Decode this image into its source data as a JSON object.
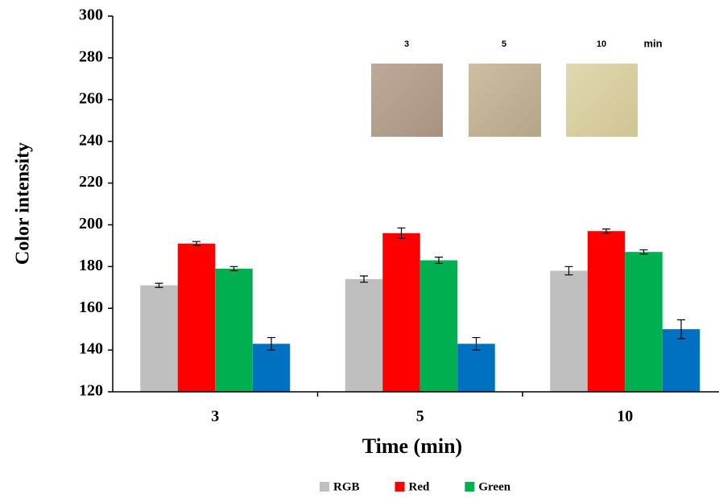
{
  "chart_data": {
    "type": "bar",
    "x_label": "Time (min)",
    "y_label": "Color intensity",
    "categories": [
      "3",
      "5",
      "10"
    ],
    "series": [
      {
        "name": "RGB",
        "color": "#bfbfbf",
        "values": [
          171,
          174,
          178
        ],
        "errors": [
          1,
          1.5,
          2
        ]
      },
      {
        "name": "Red",
        "color": "#ff0000",
        "values": [
          191,
          196,
          197
        ],
        "errors": [
          1,
          2.5,
          1
        ]
      },
      {
        "name": "Green",
        "color": "#00b050",
        "values": [
          179,
          183,
          187
        ],
        "errors": [
          1,
          1.5,
          1
        ]
      },
      {
        "color": "#0070c0",
        "values": [
          143,
          143,
          150
        ],
        "errors": [
          3,
          3,
          4.5
        ]
      }
    ],
    "ylim": [
      120,
      300
    ],
    "yticks": [
      120,
      140,
      160,
      180,
      200,
      220,
      240,
      260,
      280,
      300
    ],
    "inset_labels": [
      "3",
      "5",
      "10"
    ],
    "inset_unit": "min"
  }
}
